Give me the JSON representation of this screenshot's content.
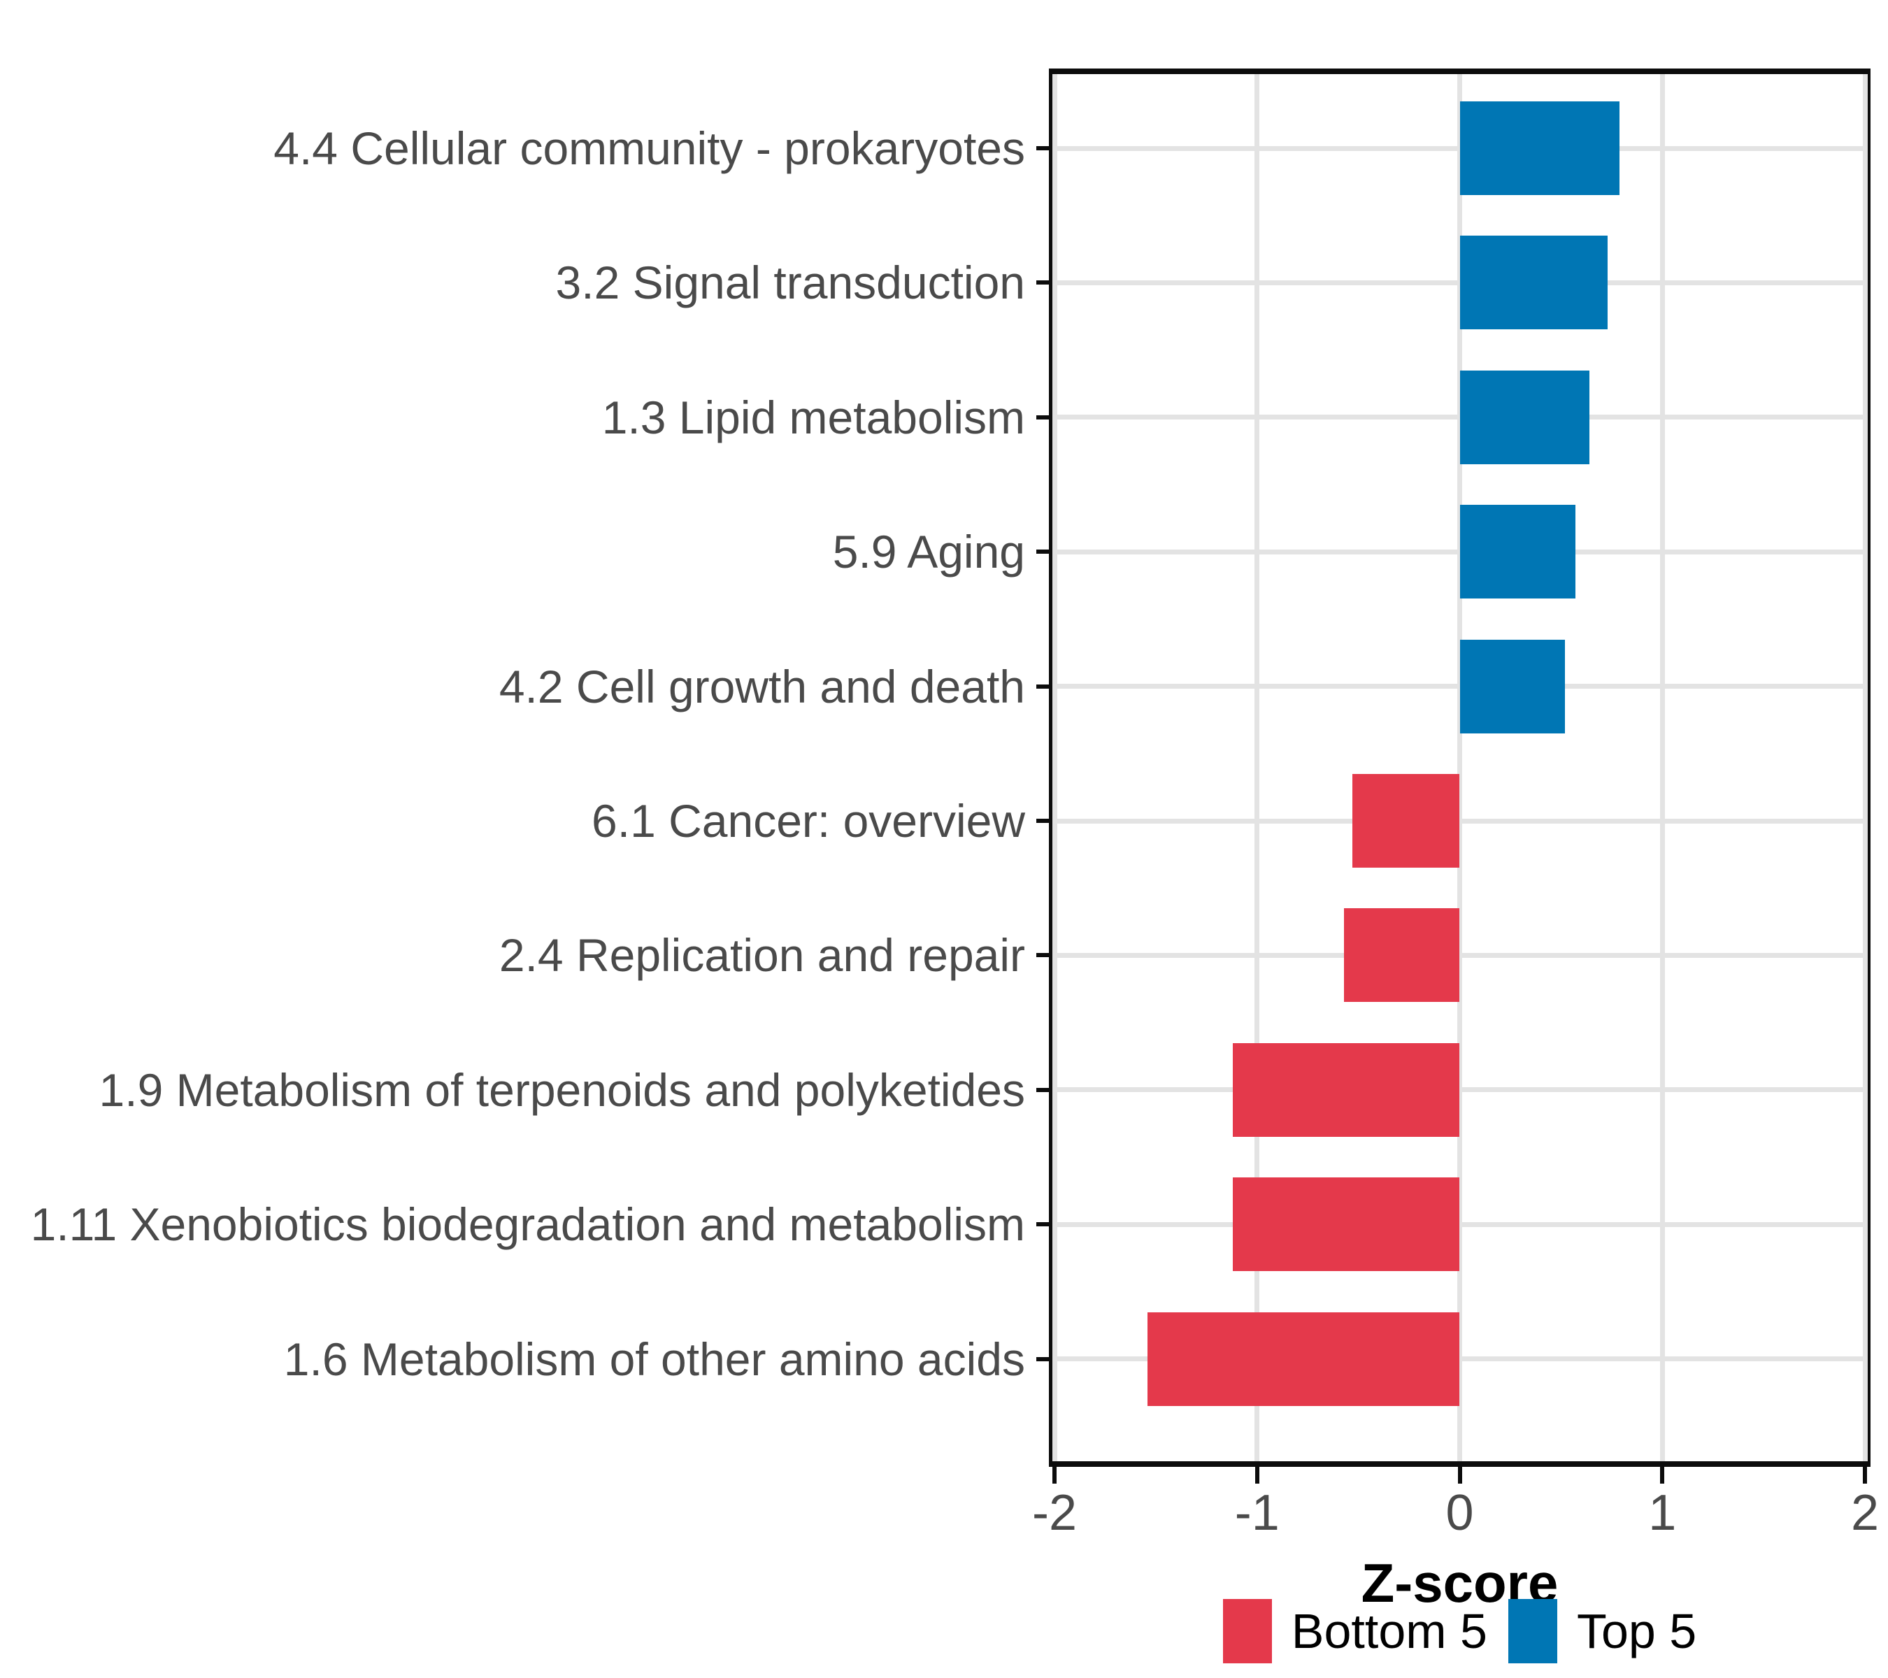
{
  "chart_data": {
    "type": "bar",
    "orientation": "horizontal",
    "title": "",
    "xlabel": "Z-score",
    "ylabel": "",
    "xlim": [
      -2,
      2
    ],
    "xticks": [
      -2,
      -1,
      0,
      1,
      2
    ],
    "xtick_labels": [
      "-2",
      "-1",
      "0",
      "1",
      "2"
    ],
    "grid": true,
    "legend_position": "bottom",
    "categories": [
      "4.4 Cellular community - prokaryotes",
      "3.2 Signal transduction",
      "1.3 Lipid metabolism",
      "5.9 Aging",
      "4.2 Cell growth and death",
      "6.1 Cancer: overview",
      "2.4 Replication and repair",
      "1.9 Metabolism of terpenoids and polyketides",
      "1.11 Xenobiotics biodegradation and metabolism",
      "1.6 Metabolism of other amino acids"
    ],
    "values": [
      0.79,
      0.73,
      0.64,
      0.57,
      0.52,
      -0.53,
      -0.57,
      -1.12,
      -1.12,
      -1.54
    ],
    "bar_groups": [
      "Top 5",
      "Top 5",
      "Top 5",
      "Top 5",
      "Top 5",
      "Bottom 5",
      "Bottom 5",
      "Bottom 5",
      "Bottom 5",
      "Bottom 5"
    ],
    "series": [
      {
        "name": "Bottom 5",
        "color": "#e4394b"
      },
      {
        "name": "Top 5",
        "color": "#0076b4"
      }
    ]
  }
}
